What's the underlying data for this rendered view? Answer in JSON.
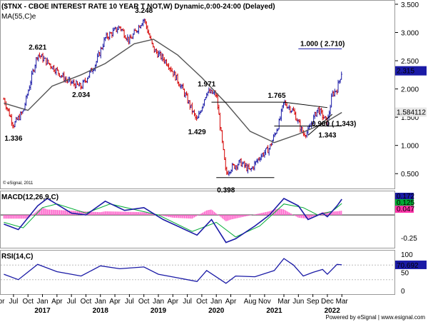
{
  "chart_data": {
    "type": "candlestick",
    "title": "($TNX - CBOE INTEREST RATE 10 YEAR T NOT,W) Dynamic,0:00-24:00 (Delayed)",
    "overlay_label": "MA(55,C)e",
    "copyright": "© eSignal, 2011",
    "footer": "Powered by eSignal | www.esignal.com",
    "price_axis": {
      "ticks": [
        "3.500",
        "3.000",
        "2.500",
        "2.000",
        "1.500",
        "1.000",
        "0.500"
      ],
      "range": [
        0.25,
        3.55
      ],
      "last_price": "2.315",
      "ma_value": "1.584112"
    },
    "annotations": [
      {
        "label": "2.621",
        "value": 2.621
      },
      {
        "label": "3.248",
        "value": 3.248
      },
      {
        "label": "2.034",
        "value": 2.034
      },
      {
        "label": "1.336",
        "value": 1.336
      },
      {
        "label": "1.971",
        "value": 1.971
      },
      {
        "label": "1.429",
        "value": 1.429
      },
      {
        "label": "1.765",
        "value": 1.765
      },
      {
        "label": "0.398",
        "value": 0.398
      },
      {
        "label": "1.343",
        "value": 1.343
      },
      {
        "label": "1.000 ( 2.710)",
        "value": 2.71
      },
      {
        "label": "0.900 ( 1.343)",
        "value": 1.343
      }
    ],
    "x_axis": {
      "month_labels": [
        "Apr",
        "Jul",
        "Oct",
        "Jan",
        "Apr",
        "Jul",
        "Oct",
        "Jan",
        "Apr",
        "Jul",
        "Oct",
        "Jan",
        "Apr",
        "Jul",
        "Oct",
        "Jan",
        "Apr",
        "Aug",
        "Nov",
        "Mar",
        "Jun",
        "Sep",
        "Dec",
        "Mar"
      ],
      "year_labels": [
        "2017",
        "2018",
        "2019",
        "2020",
        "2021",
        "2022"
      ]
    },
    "price_path": [
      {
        "date": "2016-05",
        "value": 1.82
      },
      {
        "date": "2016-07",
        "value": 1.36
      },
      {
        "date": "2016-09",
        "value": 1.6
      },
      {
        "date": "2016-11",
        "value": 2.3
      },
      {
        "date": "2016-12",
        "value": 2.62
      },
      {
        "date": "2017-03",
        "value": 2.4
      },
      {
        "date": "2017-06",
        "value": 2.15
      },
      {
        "date": "2017-09",
        "value": 2.03
      },
      {
        "date": "2017-12",
        "value": 2.45
      },
      {
        "date": "2018-02",
        "value": 2.9
      },
      {
        "date": "2018-05",
        "value": 3.1
      },
      {
        "date": "2018-07",
        "value": 2.85
      },
      {
        "date": "2018-10",
        "value": 3.248
      },
      {
        "date": "2018-12",
        "value": 2.7
      },
      {
        "date": "2019-03",
        "value": 2.45
      },
      {
        "date": "2019-06",
        "value": 2.0
      },
      {
        "date": "2019-09",
        "value": 1.43
      },
      {
        "date": "2019-11",
        "value": 1.95
      },
      {
        "date": "2020-01",
        "value": 1.9
      },
      {
        "date": "2020-03",
        "value": 0.5
      },
      {
        "date": "2020-04",
        "value": 0.6
      },
      {
        "date": "2020-06",
        "value": 0.7
      },
      {
        "date": "2020-08",
        "value": 0.55
      },
      {
        "date": "2020-10",
        "value": 0.8
      },
      {
        "date": "2020-12",
        "value": 0.95
      },
      {
        "date": "2021-02",
        "value": 1.4
      },
      {
        "date": "2021-03",
        "value": 1.765
      },
      {
        "date": "2021-05",
        "value": 1.6
      },
      {
        "date": "2021-07",
        "value": 1.2
      },
      {
        "date": "2021-08",
        "value": 1.25
      },
      {
        "date": "2021-10",
        "value": 1.65
      },
      {
        "date": "2021-12",
        "value": 1.4
      },
      {
        "date": "2022-01",
        "value": 1.9
      },
      {
        "date": "2022-02",
        "value": 2.0
      },
      {
        "date": "2022-03",
        "value": 2.315
      }
    ],
    "ma_path": [
      {
        "date": "2016-05",
        "value": 1.75
      },
      {
        "date": "2016-10",
        "value": 1.62
      },
      {
        "date": "2017-03",
        "value": 2.05
      },
      {
        "date": "2017-09",
        "value": 2.25
      },
      {
        "date": "2018-02",
        "value": 2.45
      },
      {
        "date": "2018-08",
        "value": 2.8
      },
      {
        "date": "2018-12",
        "value": 2.88
      },
      {
        "date": "2019-05",
        "value": 2.6
      },
      {
        "date": "2019-10",
        "value": 2.2
      },
      {
        "date": "2020-03",
        "value": 1.75
      },
      {
        "date": "2020-08",
        "value": 1.25
      },
      {
        "date": "2021-01",
        "value": 1.05
      },
      {
        "date": "2021-06",
        "value": 1.2
      },
      {
        "date": "2021-11",
        "value": 1.38
      },
      {
        "date": "2022-03",
        "value": 1.584
      }
    ],
    "macd": {
      "label": "MACD(12,26,9,C)",
      "values": [
        "0.172",
        "0.125",
        "0.047"
      ],
      "axis_ticks": [
        "-0.25"
      ],
      "range": [
        -0.35,
        0.25
      ],
      "macd_path": [
        {
          "date": "2016-05",
          "value": -0.1
        },
        {
          "date": "2016-08",
          "value": -0.16
        },
        {
          "date": "2016-12",
          "value": 0.1
        },
        {
          "date": "2017-02",
          "value": 0.18
        },
        {
          "date": "2017-07",
          "value": 0.02
        },
        {
          "date": "2017-10",
          "value": 0.0
        },
        {
          "date": "2018-02",
          "value": 0.15
        },
        {
          "date": "2018-06",
          "value": 0.05
        },
        {
          "date": "2018-10",
          "value": 0.08
        },
        {
          "date": "2019-02",
          "value": -0.05
        },
        {
          "date": "2019-09",
          "value": -0.22
        },
        {
          "date": "2019-12",
          "value": -0.05
        },
        {
          "date": "2020-03",
          "value": -0.3
        },
        {
          "date": "2020-05",
          "value": -0.26
        },
        {
          "date": "2020-09",
          "value": -0.12
        },
        {
          "date": "2020-12",
          "value": 0.0
        },
        {
          "date": "2021-03",
          "value": 0.18
        },
        {
          "date": "2021-06",
          "value": 0.1
        },
        {
          "date": "2021-08",
          "value": -0.05
        },
        {
          "date": "2021-11",
          "value": 0.02
        },
        {
          "date": "2021-12",
          "value": -0.02
        },
        {
          "date": "2022-02",
          "value": 0.1
        },
        {
          "date": "2022-03",
          "value": 0.172
        }
      ],
      "signal_path": [
        {
          "date": "2016-05",
          "value": -0.08
        },
        {
          "date": "2016-09",
          "value": -0.14
        },
        {
          "date": "2017-01",
          "value": 0.08
        },
        {
          "date": "2017-04",
          "value": 0.12
        },
        {
          "date": "2017-10",
          "value": 0.02
        },
        {
          "date": "2018-03",
          "value": 0.12
        },
        {
          "date": "2018-08",
          "value": 0.06
        },
        {
          "date": "2019-01",
          "value": 0.0
        },
        {
          "date": "2019-08",
          "value": -0.18
        },
        {
          "date": "2020-01",
          "value": -0.08
        },
        {
          "date": "2020-05",
          "value": -0.24
        },
        {
          "date": "2020-10",
          "value": -0.12
        },
        {
          "date": "2021-03",
          "value": 0.12
        },
        {
          "date": "2021-07",
          "value": 0.08
        },
        {
          "date": "2021-10",
          "value": 0.0
        },
        {
          "date": "2022-01",
          "value": 0.04
        },
        {
          "date": "2022-03",
          "value": 0.125
        }
      ],
      "histogram": [
        {
          "date": "2016-10",
          "value": -0.04
        },
        {
          "date": "2016-12",
          "value": 0.05
        },
        {
          "date": "2017-01",
          "value": 0.08
        },
        {
          "date": "2017-02",
          "value": 0.06
        },
        {
          "date": "2018-01",
          "value": 0.03
        },
        {
          "date": "2018-02",
          "value": 0.04
        },
        {
          "date": "2018-10",
          "value": 0.03
        },
        {
          "date": "2019-04",
          "value": -0.03
        },
        {
          "date": "2019-08",
          "value": -0.04
        },
        {
          "date": "2019-11",
          "value": 0.05
        },
        {
          "date": "2019-12",
          "value": 0.06
        },
        {
          "date": "2020-03",
          "value": -0.07
        },
        {
          "date": "2020-04",
          "value": -0.05
        },
        {
          "date": "2020-12",
          "value": 0.04
        },
        {
          "date": "2021-01",
          "value": 0.06
        },
        {
          "date": "2021-02",
          "value": 0.07
        },
        {
          "date": "2021-03",
          "value": 0.06
        },
        {
          "date": "2021-06",
          "value": -0.03
        },
        {
          "date": "2021-08",
          "value": -0.04
        },
        {
          "date": "2021-11",
          "value": 0.03
        },
        {
          "date": "2022-02",
          "value": 0.04
        },
        {
          "date": "2022-03",
          "value": 0.047
        }
      ]
    },
    "rsi": {
      "label": "RSI(14,C)",
      "value": "70.692",
      "axis_ticks": [
        "100",
        "50",
        "0"
      ],
      "range": [
        0,
        100
      ],
      "path": [
        {
          "date": "2016-05",
          "value": 45
        },
        {
          "date": "2016-08",
          "value": 30
        },
        {
          "date": "2016-12",
          "value": 72
        },
        {
          "date": "2017-04",
          "value": 52
        },
        {
          "date": "2017-09",
          "value": 40
        },
        {
          "date": "2018-01",
          "value": 68
        },
        {
          "date": "2018-05",
          "value": 60
        },
        {
          "date": "2018-10",
          "value": 65
        },
        {
          "date": "2019-01",
          "value": 45
        },
        {
          "date": "2019-05",
          "value": 35
        },
        {
          "date": "2019-09",
          "value": 25
        },
        {
          "date": "2019-11",
          "value": 55
        },
        {
          "date": "2020-03",
          "value": 20
        },
        {
          "date": "2020-05",
          "value": 40
        },
        {
          "date": "2020-09",
          "value": 38
        },
        {
          "date": "2021-01",
          "value": 55
        },
        {
          "date": "2021-03",
          "value": 88
        },
        {
          "date": "2021-05",
          "value": 70
        },
        {
          "date": "2021-07",
          "value": 40
        },
        {
          "date": "2021-09",
          "value": 50
        },
        {
          "date": "2021-11",
          "value": 58
        },
        {
          "date": "2021-12",
          "value": 45
        },
        {
          "date": "2022-02",
          "value": 72
        },
        {
          "date": "2022-03",
          "value": 70.692
        }
      ]
    },
    "colors": {
      "up": "#1a1aa6",
      "down": "#d40000",
      "ma": "#555555",
      "macd": "#1a1aa6",
      "signal": "#00aa33",
      "histogram": "#ff66cc",
      "rsi": "#1a1aa6",
      "target_line": "#1a1aa6"
    }
  }
}
